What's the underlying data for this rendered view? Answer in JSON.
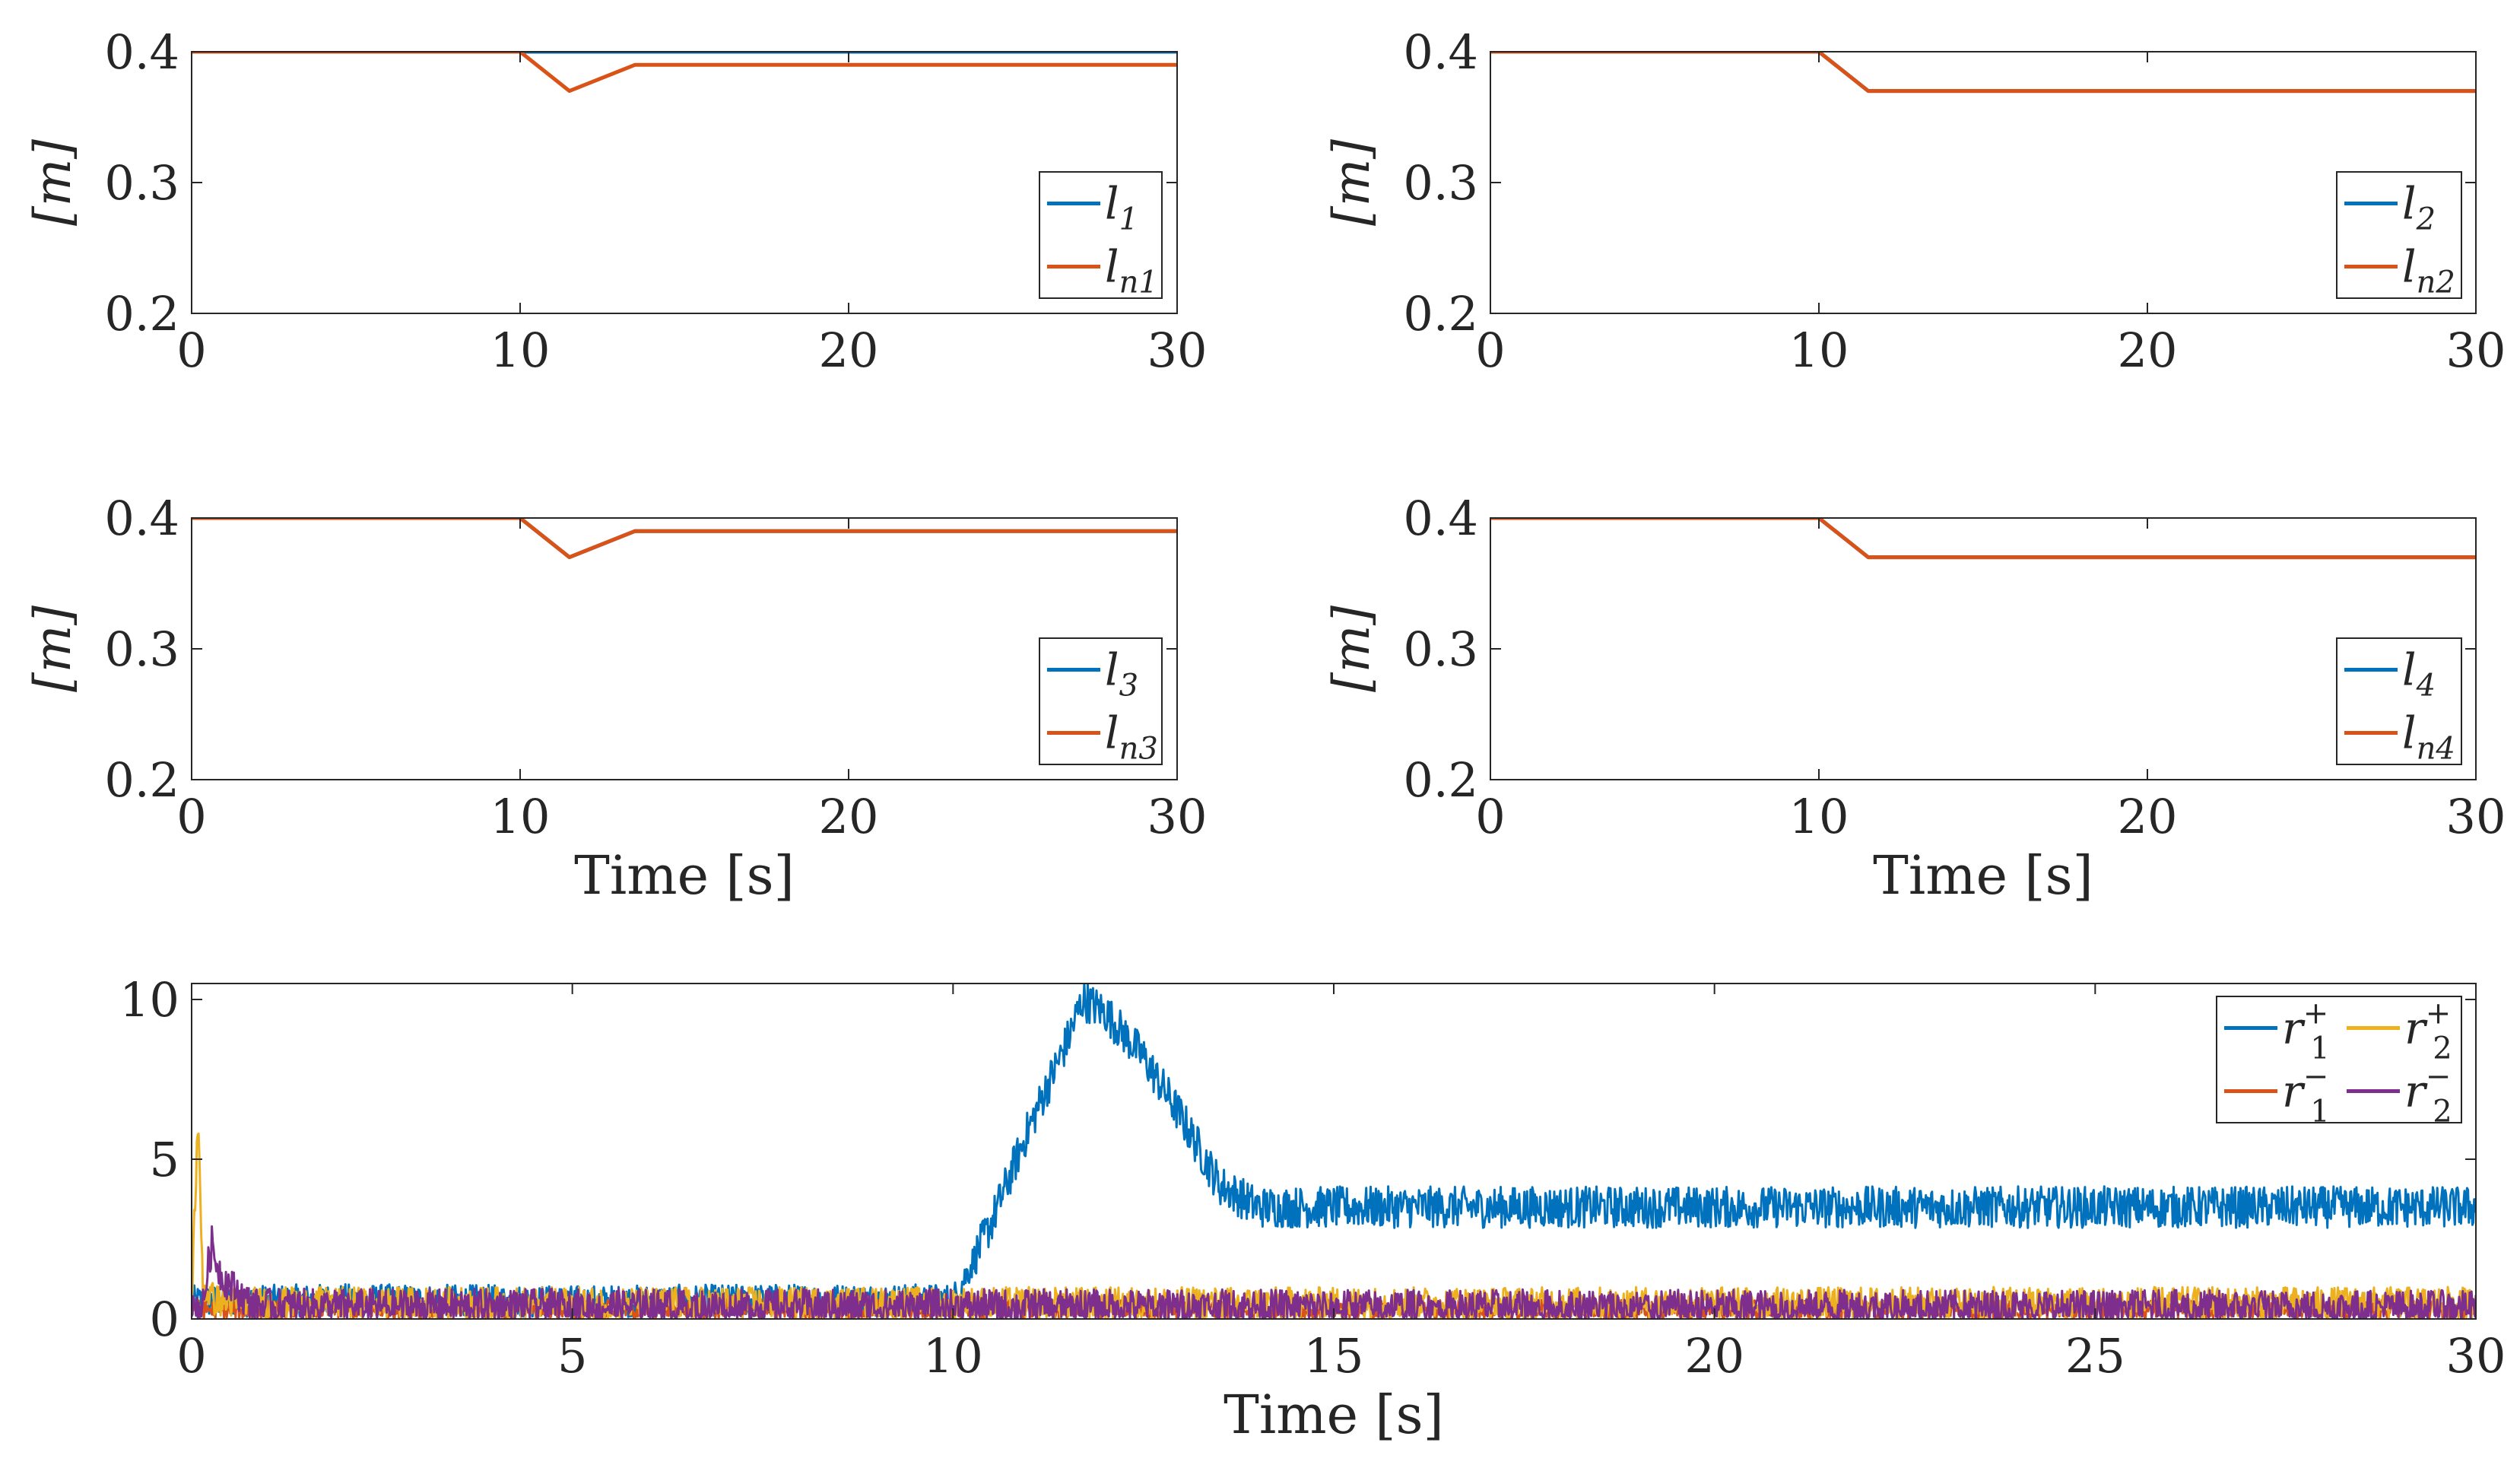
{
  "colors": {
    "blue": "#0072BD",
    "orange": "#D95319",
    "yellow": "#EDB120",
    "purple": "#7E2F8E",
    "axis": "#262626"
  },
  "chart_data": [
    {
      "id": "p1",
      "type": "line",
      "xlim": [
        0,
        30
      ],
      "ylim": [
        0.2,
        0.4
      ],
      "xticks": [
        "0",
        "10",
        "20",
        "30"
      ],
      "yticks": [
        "0.2",
        "0.3",
        "0.4"
      ],
      "ylabel": "[m]",
      "xlabel": "",
      "legend_position": "bottom-right",
      "series": [
        {
          "name": "l1",
          "label_base": "l",
          "label_sub": "1",
          "color": "blue",
          "x": [
            0,
            30
          ],
          "y": [
            0.4,
            0.4
          ]
        },
        {
          "name": "ln1",
          "label_base": "l",
          "label_sub": "n1",
          "color": "orange",
          "x": [
            0,
            10,
            11.5,
            13.5,
            30
          ],
          "y": [
            0.4,
            0.4,
            0.37,
            0.39,
            0.39
          ]
        }
      ]
    },
    {
      "id": "p2",
      "type": "line",
      "xlim": [
        0,
        30
      ],
      "ylim": [
        0.2,
        0.4
      ],
      "xticks": [
        "0",
        "10",
        "20",
        "30"
      ],
      "yticks": [
        "0.2",
        "0.3",
        "0.4"
      ],
      "ylabel": "[m]",
      "xlabel": "",
      "legend_position": "bottom-right",
      "series": [
        {
          "name": "l2",
          "label_base": "l",
          "label_sub": "2",
          "color": "blue",
          "x": [
            0,
            10,
            11.5,
            30
          ],
          "y": [
            0.4,
            0.4,
            0.37,
            0.37
          ]
        },
        {
          "name": "ln2",
          "label_base": "l",
          "label_sub": "n2",
          "color": "orange",
          "x": [
            0,
            10,
            11.5,
            30
          ],
          "y": [
            0.4,
            0.4,
            0.37,
            0.37
          ]
        }
      ]
    },
    {
      "id": "p3",
      "type": "line",
      "xlim": [
        0,
        30
      ],
      "ylim": [
        0.2,
        0.4
      ],
      "xticks": [
        "0",
        "10",
        "20",
        "30"
      ],
      "yticks": [
        "0.2",
        "0.3",
        "0.4"
      ],
      "ylabel": "[m]",
      "xlabel": "Time [s]",
      "legend_position": "bottom-right",
      "series": [
        {
          "name": "l3",
          "label_base": "l",
          "label_sub": "3",
          "color": "blue",
          "x": [
            0,
            10,
            11.5,
            13.5,
            30
          ],
          "y": [
            0.4,
            0.4,
            0.37,
            0.39,
            0.39
          ]
        },
        {
          "name": "ln3",
          "label_base": "l",
          "label_sub": "n3",
          "color": "orange",
          "x": [
            0,
            10,
            11.5,
            13.5,
            30
          ],
          "y": [
            0.4,
            0.4,
            0.37,
            0.39,
            0.39
          ]
        }
      ]
    },
    {
      "id": "p4",
      "type": "line",
      "xlim": [
        0,
        30
      ],
      "ylim": [
        0.2,
        0.4
      ],
      "xticks": [
        "0",
        "10",
        "20",
        "30"
      ],
      "yticks": [
        "0.2",
        "0.3",
        "0.4"
      ],
      "ylabel": "[m]",
      "xlabel": "Time [s]",
      "legend_position": "bottom-right",
      "series": [
        {
          "name": "l4",
          "label_base": "l",
          "label_sub": "4",
          "color": "blue",
          "x": [
            0,
            10,
            11.5,
            30
          ],
          "y": [
            0.4,
            0.4,
            0.37,
            0.37
          ]
        },
        {
          "name": "ln4",
          "label_base": "l",
          "label_sub": "n4",
          "color": "orange",
          "x": [
            0,
            10,
            11.5,
            30
          ],
          "y": [
            0.4,
            0.4,
            0.37,
            0.37
          ]
        }
      ]
    },
    {
      "id": "p5",
      "type": "line",
      "xlim": [
        0,
        30
      ],
      "ylim": [
        0,
        10.5
      ],
      "xticks": [
        "0",
        "5",
        "10",
        "15",
        "20",
        "25",
        "30"
      ],
      "yticks": [
        "0",
        "5",
        "10"
      ],
      "ylabel": "",
      "xlabel": "Time [s]",
      "legend_position": "top-right",
      "legend_columns": 2,
      "series": [
        {
          "name": "r1+",
          "label_base": "r",
          "label_sub": "1",
          "label_sup": "+",
          "color": "blue",
          "x": [
            0,
            2,
            5,
            8,
            10,
            10.2,
            10.5,
            11,
            11.5,
            11.7,
            12,
            12.5,
            13,
            13.5,
            14,
            15,
            17,
            20,
            22,
            25,
            27,
            30
          ],
          "y": [
            0.55,
            0.6,
            0.55,
            0.6,
            0.6,
            1.5,
            3,
            6,
            8.7,
            10,
            9.6,
            8.2,
            6.3,
            4.2,
            3.5,
            3.5,
            3.5,
            3.5,
            3.5,
            3.5,
            3.5,
            3.5
          ],
          "noise": 0.5
        },
        {
          "name": "r1-",
          "label_base": "r",
          "label_sub": "1",
          "label_sup": "−",
          "color": "orange",
          "x": [
            0,
            30
          ],
          "y": [
            0.3,
            0.3
          ],
          "noise": 0.3
        },
        {
          "name": "r2+",
          "label_base": "r",
          "label_sub": "2",
          "label_sup": "+",
          "color": "yellow",
          "x": [
            0,
            0.08,
            0.15,
            0.3,
            0.6,
            30
          ],
          "y": [
            0.5,
            6.2,
            1.0,
            0.6,
            0.5,
            0.5
          ],
          "noise": 0.5
        },
        {
          "name": "r2-",
          "label_base": "r",
          "label_sub": "2",
          "label_sup": "−",
          "color": "purple",
          "x": [
            0,
            0.15,
            0.25,
            0.4,
            0.8,
            30
          ],
          "y": [
            0.4,
            0.4,
            2.3,
            1.3,
            0.4,
            0.35
          ],
          "noise": 0.55
        }
      ]
    }
  ]
}
